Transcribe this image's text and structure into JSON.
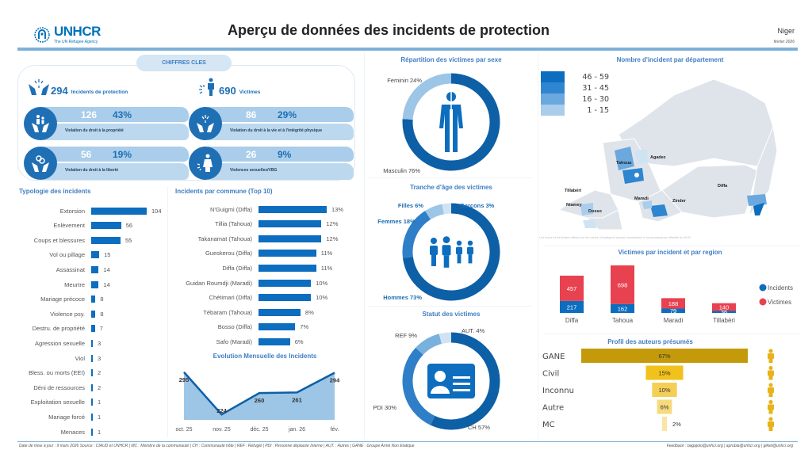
{
  "header": {
    "logo_text": "UNHCR",
    "logo_sub": "The UN Refugee Agency",
    "title": "Aperçu de données des incidents de protection",
    "country": "Niger",
    "period": "février 2026"
  },
  "key_figures": {
    "tab_label": "CHIFFRES CLES",
    "incidents": {
      "value": "294",
      "label": "Incidents de protection"
    },
    "victims": {
      "value": "690",
      "label": "Victimes"
    },
    "cards": [
      {
        "count": "126",
        "pct": "43%",
        "label": "Violation du droit à la propriété",
        "icon": "hands-family-icon"
      },
      {
        "count": "86",
        "pct": "29%",
        "label": "Violation du droit à la vie et à l'intégrité physique",
        "icon": "hands-burst-icon"
      },
      {
        "count": "56",
        "pct": "19%",
        "label": "Violation du droit à la liberté",
        "icon": "hands-chain-icon"
      },
      {
        "count": "26",
        "pct": "9%",
        "label": "Violences sexuelles/VBG",
        "icon": "woman-burst-icon"
      }
    ]
  },
  "typologie": {
    "title": "Typologie des incidents",
    "items": [
      {
        "label": "Extorsion",
        "value": 104
      },
      {
        "label": "Enlèvement",
        "value": 56
      },
      {
        "label": "Coups et blessures",
        "value": 55
      },
      {
        "label": "Vol ou pillage",
        "value": 15
      },
      {
        "label": "Assassinat",
        "value": 14
      },
      {
        "label": "Meurtre",
        "value": 14
      },
      {
        "label": "Mariage précoce",
        "value": 8
      },
      {
        "label": "Violence psy.",
        "value": 8
      },
      {
        "label": "Destru. de propriété",
        "value": 7
      },
      {
        "label": "Agression sexuelle",
        "value": 3
      },
      {
        "label": "Viol",
        "value": 3
      },
      {
        "label": "Bless. ou morts (EEI)",
        "value": 2
      },
      {
        "label": "Déni de ressources",
        "value": 2
      },
      {
        "label": "Exploitation sexuelle",
        "value": 1
      },
      {
        "label": "Mariage forcé",
        "value": 1
      },
      {
        "label": "Menaces",
        "value": 1
      }
    ]
  },
  "communes": {
    "title": "Incidents par commune (Top 10)",
    "items": [
      {
        "label": "N'Guigmi (Diffa)",
        "value": 13,
        "text": "13%"
      },
      {
        "label": "Tillia (Tahoua)",
        "value": 12,
        "text": "12%"
      },
      {
        "label": "Takanamat (Tahoua)",
        "value": 12,
        "text": "12%"
      },
      {
        "label": "Gueskerou (Diffa)",
        "value": 11,
        "text": "11%"
      },
      {
        "label": "Diffa (Diffa)",
        "value": 11,
        "text": "11%"
      },
      {
        "label": "Guidan Roumdji (Maradi)",
        "value": 10,
        "text": "10%"
      },
      {
        "label": "Chétimari (Diffa)",
        "value": 10,
        "text": "10%"
      },
      {
        "label": "Tébaram (Tahoua)",
        "value": 8,
        "text": "8%"
      },
      {
        "label": "Bosso (Diffa)",
        "value": 7,
        "text": "7%"
      },
      {
        "label": "Safo (Maradi)",
        "value": 6,
        "text": "6%"
      }
    ]
  },
  "evolution": {
    "title": "Evolution Mensuelle des Incidents",
    "points": [
      {
        "label": "oct. 25",
        "value": 295
      },
      {
        "label": "nov. 25",
        "value": 224
      },
      {
        "label": "déc. 25",
        "value": 260
      },
      {
        "label": "jan. 26",
        "value": 261
      },
      {
        "label": "fév.",
        "value": 294
      }
    ]
  },
  "sexe": {
    "title": "Répartition des victimes par sexe",
    "slices": [
      {
        "label": "Masculin 76%",
        "value": 76,
        "color": "#0d5fa6"
      },
      {
        "label": "Feminin 24%",
        "value": 24,
        "color": "#9cc5e6"
      }
    ]
  },
  "age": {
    "title": "Tranche d'âge des victimes",
    "slices": [
      {
        "label": "Hommes 73%",
        "value": 73,
        "color": "#0d5fa6"
      },
      {
        "label": "Femmes 18%",
        "value": 18,
        "color": "#2f7fc8"
      },
      {
        "label": "Filles 6%",
        "value": 6,
        "color": "#9cc5e6"
      },
      {
        "label": "Garçons 3%",
        "value": 3,
        "color": "#cfe3f3"
      }
    ]
  },
  "statut": {
    "title": "Statut des victimes",
    "slices": [
      {
        "label": "CH 57%",
        "value": 57,
        "color": "#0d5fa6"
      },
      {
        "label": "PDI 30%",
        "value": 30,
        "color": "#2f7fc8"
      },
      {
        "label": "REF 9%",
        "value": 9,
        "color": "#78b0de"
      },
      {
        "label": "AUT. 4%",
        "value": 4,
        "color": "#cfe3f3"
      }
    ]
  },
  "map": {
    "title": "Nombre d'incident par département",
    "legend": [
      {
        "label": "46  -  59",
        "color": "#0d6dbf"
      },
      {
        "label": "31  -  45",
        "color": "#2f86d0"
      },
      {
        "label": "16  -  30",
        "color": "#6aa8de"
      },
      {
        "label": "1  -  15",
        "color": "#a9cdea"
      }
    ],
    "regions": [
      "Agadez",
      "Tahoua",
      "Tillabéri",
      "Niamey",
      "Dosso",
      "Maradi",
      "Zinder",
      "Diffa"
    ],
    "disclaimer": "Les noms et les limites utilisés sur les cartes n'impliquent aucune acceptation ni reconnaissance officielle du HCR"
  },
  "region_bars": {
    "title": "Victimes par incident et par region",
    "legend": [
      {
        "label": "Incidents",
        "color": "#0d6dbf"
      },
      {
        "label": "Victimes",
        "color": "#e8414f"
      }
    ],
    "items": [
      {
        "label": "Diffa",
        "incidents": 217,
        "victims": 457
      },
      {
        "label": "Tahoua",
        "incidents": 162,
        "victims": 698
      },
      {
        "label": "Maradi",
        "incidents": 79,
        "victims": 188
      },
      {
        "label": "Tillabéri",
        "incidents": 36,
        "victims": 140
      }
    ]
  },
  "auteurs": {
    "title": "Profil des auteurs présumés",
    "items": [
      {
        "label": "GANE",
        "value": 67,
        "text": "67%",
        "color": "#c49a0a"
      },
      {
        "label": "Civil",
        "value": 15,
        "text": "15%",
        "color": "#f1c21b"
      },
      {
        "label": "Inconnu",
        "value": 10,
        "text": "10%",
        "color": "#f5cf55"
      },
      {
        "label": "Autre",
        "value": 6,
        "text": "6%",
        "color": "#f7da7c"
      },
      {
        "label": "MC",
        "value": 2,
        "text": "2%",
        "color": "#f9e5a8"
      }
    ]
  },
  "footer": {
    "left": "Date de mise à jour : 9 mars 2026   Source : CIAUD et UNHCR    |  MC : Membre de la communauté  |  CH : Communauté hôte  |  REF : Refugié  |  PDI : Personne déplacée Interne  |  AUT. : Autres  |  GANE : Groupe Armé Non Etatique",
    "right": "Feedback : bagajolo@unhcr.org | aprubia@unhcr.org | gikiel@unhcr.org"
  }
}
